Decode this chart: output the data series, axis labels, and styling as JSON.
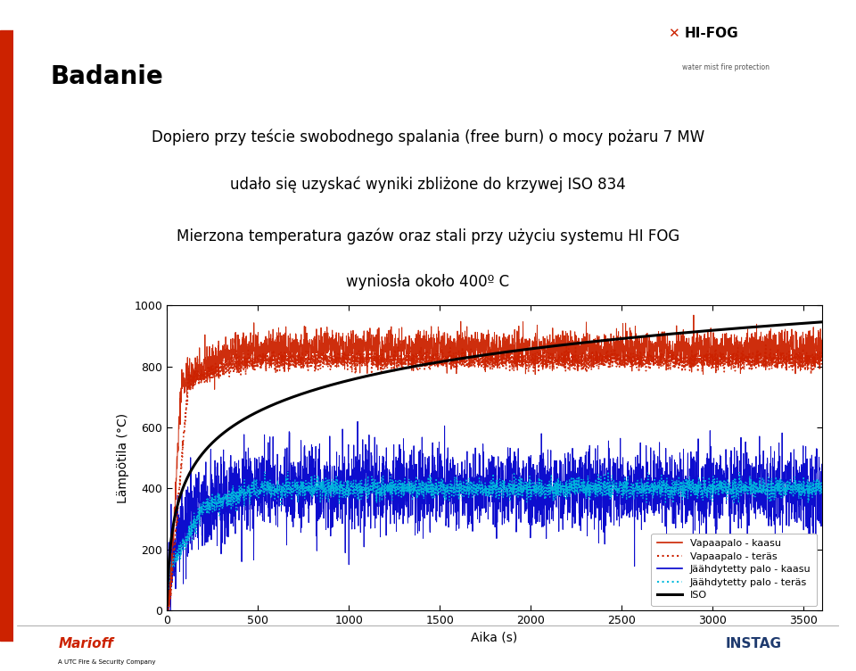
{
  "title": "Badanie",
  "text1": "Dopiero przy teście swobodnego spalania (free burn) o mocy pożaru 7 MW",
  "text2": "udało się uzyskać wyniki zbliżone do krzywej ISO 834",
  "text3": "Mierzona temperatura gazów oraz stali przy użyciu systemu HI FOG",
  "text4": "wyniosła około 400º C",
  "xlabel": "Aika (s)",
  "ylabel": "Lämpötila (°C)",
  "xlim": [
    0,
    3600
  ],
  "ylim": [
    0,
    1000
  ],
  "xticks": [
    0,
    500,
    1000,
    1500,
    2000,
    2500,
    3000,
    3500
  ],
  "yticks": [
    0,
    200,
    400,
    600,
    800,
    1000
  ],
  "legend": [
    "Vapaapalo - kaasu",
    "Vapaapalo - teräs",
    "Jäähdytetty palo - kaasu",
    "Jäähdytetty palo - teräs",
    "ISO"
  ],
  "bg_color": "#ffffff",
  "left_bar_color": "#1e3a6e",
  "left_bar_red_color": "#cc2200",
  "seed": 42
}
